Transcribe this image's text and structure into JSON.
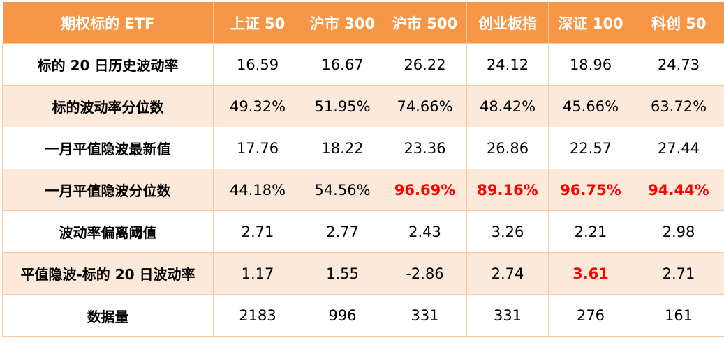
{
  "header": {
    "first_col": "期权标的 ETF",
    "columns": [
      "上证 50",
      "沪市 300",
      "沪市 500",
      "创业板指",
      "深证 100",
      "科创 50"
    ]
  },
  "rows": [
    {
      "label": "标的 20 日历史波动率",
      "cells": [
        {
          "text": "16.59",
          "highlight": false
        },
        {
          "text": "16.67",
          "highlight": false
        },
        {
          "text": "26.22",
          "highlight": false
        },
        {
          "text": "24.12",
          "highlight": false
        },
        {
          "text": "18.96",
          "highlight": false
        },
        {
          "text": "24.73",
          "highlight": false
        }
      ]
    },
    {
      "label": "标的波动率分位数",
      "cells": [
        {
          "text": "49.32%",
          "highlight": false
        },
        {
          "text": "51.95%",
          "highlight": false
        },
        {
          "text": "74.66%",
          "highlight": false
        },
        {
          "text": "48.42%",
          "highlight": false
        },
        {
          "text": "45.66%",
          "highlight": false
        },
        {
          "text": "63.72%",
          "highlight": false
        }
      ]
    },
    {
      "label": "一月平值隐波最新值",
      "cells": [
        {
          "text": "17.76",
          "highlight": false
        },
        {
          "text": "18.22",
          "highlight": false
        },
        {
          "text": "23.36",
          "highlight": false
        },
        {
          "text": "26.86",
          "highlight": false
        },
        {
          "text": "22.57",
          "highlight": false
        },
        {
          "text": "27.44",
          "highlight": false
        }
      ]
    },
    {
      "label": "一月平值隐波分位数",
      "cells": [
        {
          "text": "44.18%",
          "highlight": false
        },
        {
          "text": "54.56%",
          "highlight": false
        },
        {
          "text": "96.69%",
          "highlight": true
        },
        {
          "text": "89.16%",
          "highlight": true
        },
        {
          "text": "96.75%",
          "highlight": true
        },
        {
          "text": "94.44%",
          "highlight": true
        }
      ]
    },
    {
      "label": "波动率偏离阈值",
      "cells": [
        {
          "text": "2.71",
          "highlight": false
        },
        {
          "text": "2.77",
          "highlight": false
        },
        {
          "text": "2.43",
          "highlight": false
        },
        {
          "text": "3.26",
          "highlight": false
        },
        {
          "text": "2.21",
          "highlight": false
        },
        {
          "text": "2.98",
          "highlight": false
        }
      ]
    },
    {
      "label": "平值隐波-标的 20 日波动率",
      "cells": [
        {
          "text": "1.17",
          "highlight": false
        },
        {
          "text": "1.55",
          "highlight": false
        },
        {
          "text": "-2.86",
          "highlight": false
        },
        {
          "text": "2.74",
          "highlight": false
        },
        {
          "text": "3.61",
          "highlight": true
        },
        {
          "text": "2.71",
          "highlight": false
        }
      ]
    },
    {
      "label": "数据量",
      "cells": [
        {
          "text": "2183",
          "highlight": false
        },
        {
          "text": "996",
          "highlight": false
        },
        {
          "text": "331",
          "highlight": false
        },
        {
          "text": "331",
          "highlight": false
        },
        {
          "text": "276",
          "highlight": false
        },
        {
          "text": "161",
          "highlight": false
        }
      ]
    }
  ],
  "colors": {
    "header_bg": "#f79646",
    "header_text": "#ffffff",
    "band_light": "#fde9d9",
    "band_white": "#ffffff",
    "highlight_text": "#ff0000"
  }
}
